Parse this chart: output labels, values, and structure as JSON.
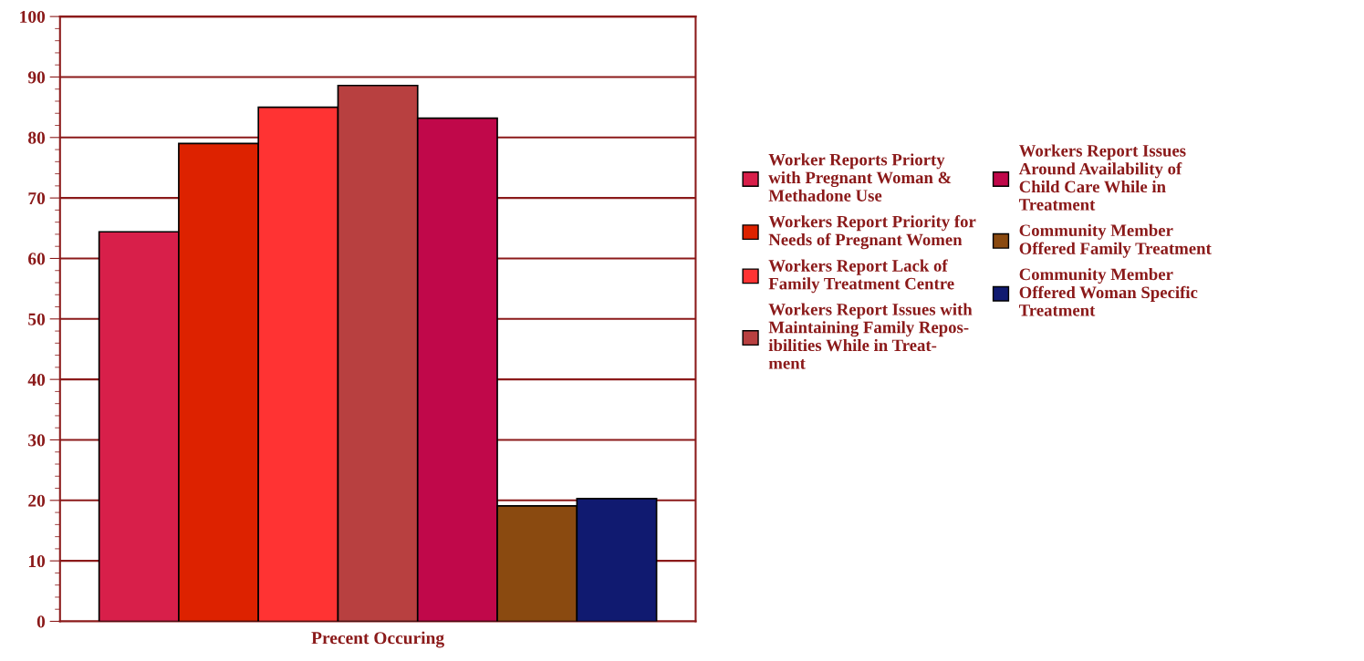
{
  "chart_data": {
    "type": "bar",
    "categories": [
      "Precent Occuring"
    ],
    "series": [
      {
        "name": "Worker Reports Priorty\nwith Pregnant Woman &\nMethadone Use",
        "color": "#d81f4a",
        "values": [
          64.4
        ]
      },
      {
        "name": "Workers Report Priority for\nNeeds of Pregnant Women",
        "color": "#dd2200",
        "values": [
          79
        ]
      },
      {
        "name": "Workers Report Lack of\nFamily Treatment Centre",
        "color": "#ff3333",
        "values": [
          85
        ]
      },
      {
        "name": "Workers Report Issues with\nMaintaining Family Repos-\nibilities While in Treat-\nment",
        "color": "#b84040",
        "values": [
          88.6
        ]
      },
      {
        "name": "Workers Report Issues\nAround Availability of\nChild Care While in\nTreatment",
        "color": "#c0084a",
        "values": [
          83.2
        ]
      },
      {
        "name": "Community Member\nOffered Family Treatment",
        "color": "#8a4a10",
        "values": [
          19.1
        ]
      },
      {
        "name": "Community Member\nOffered Woman Specific\nTreatment",
        "color": "#101a70",
        "values": [
          20.3
        ]
      }
    ],
    "ylim": [
      0,
      100
    ],
    "yticks": [
      0,
      10,
      20,
      30,
      40,
      50,
      60,
      70,
      80,
      90,
      100
    ],
    "grid": "y",
    "legend": "right"
  }
}
